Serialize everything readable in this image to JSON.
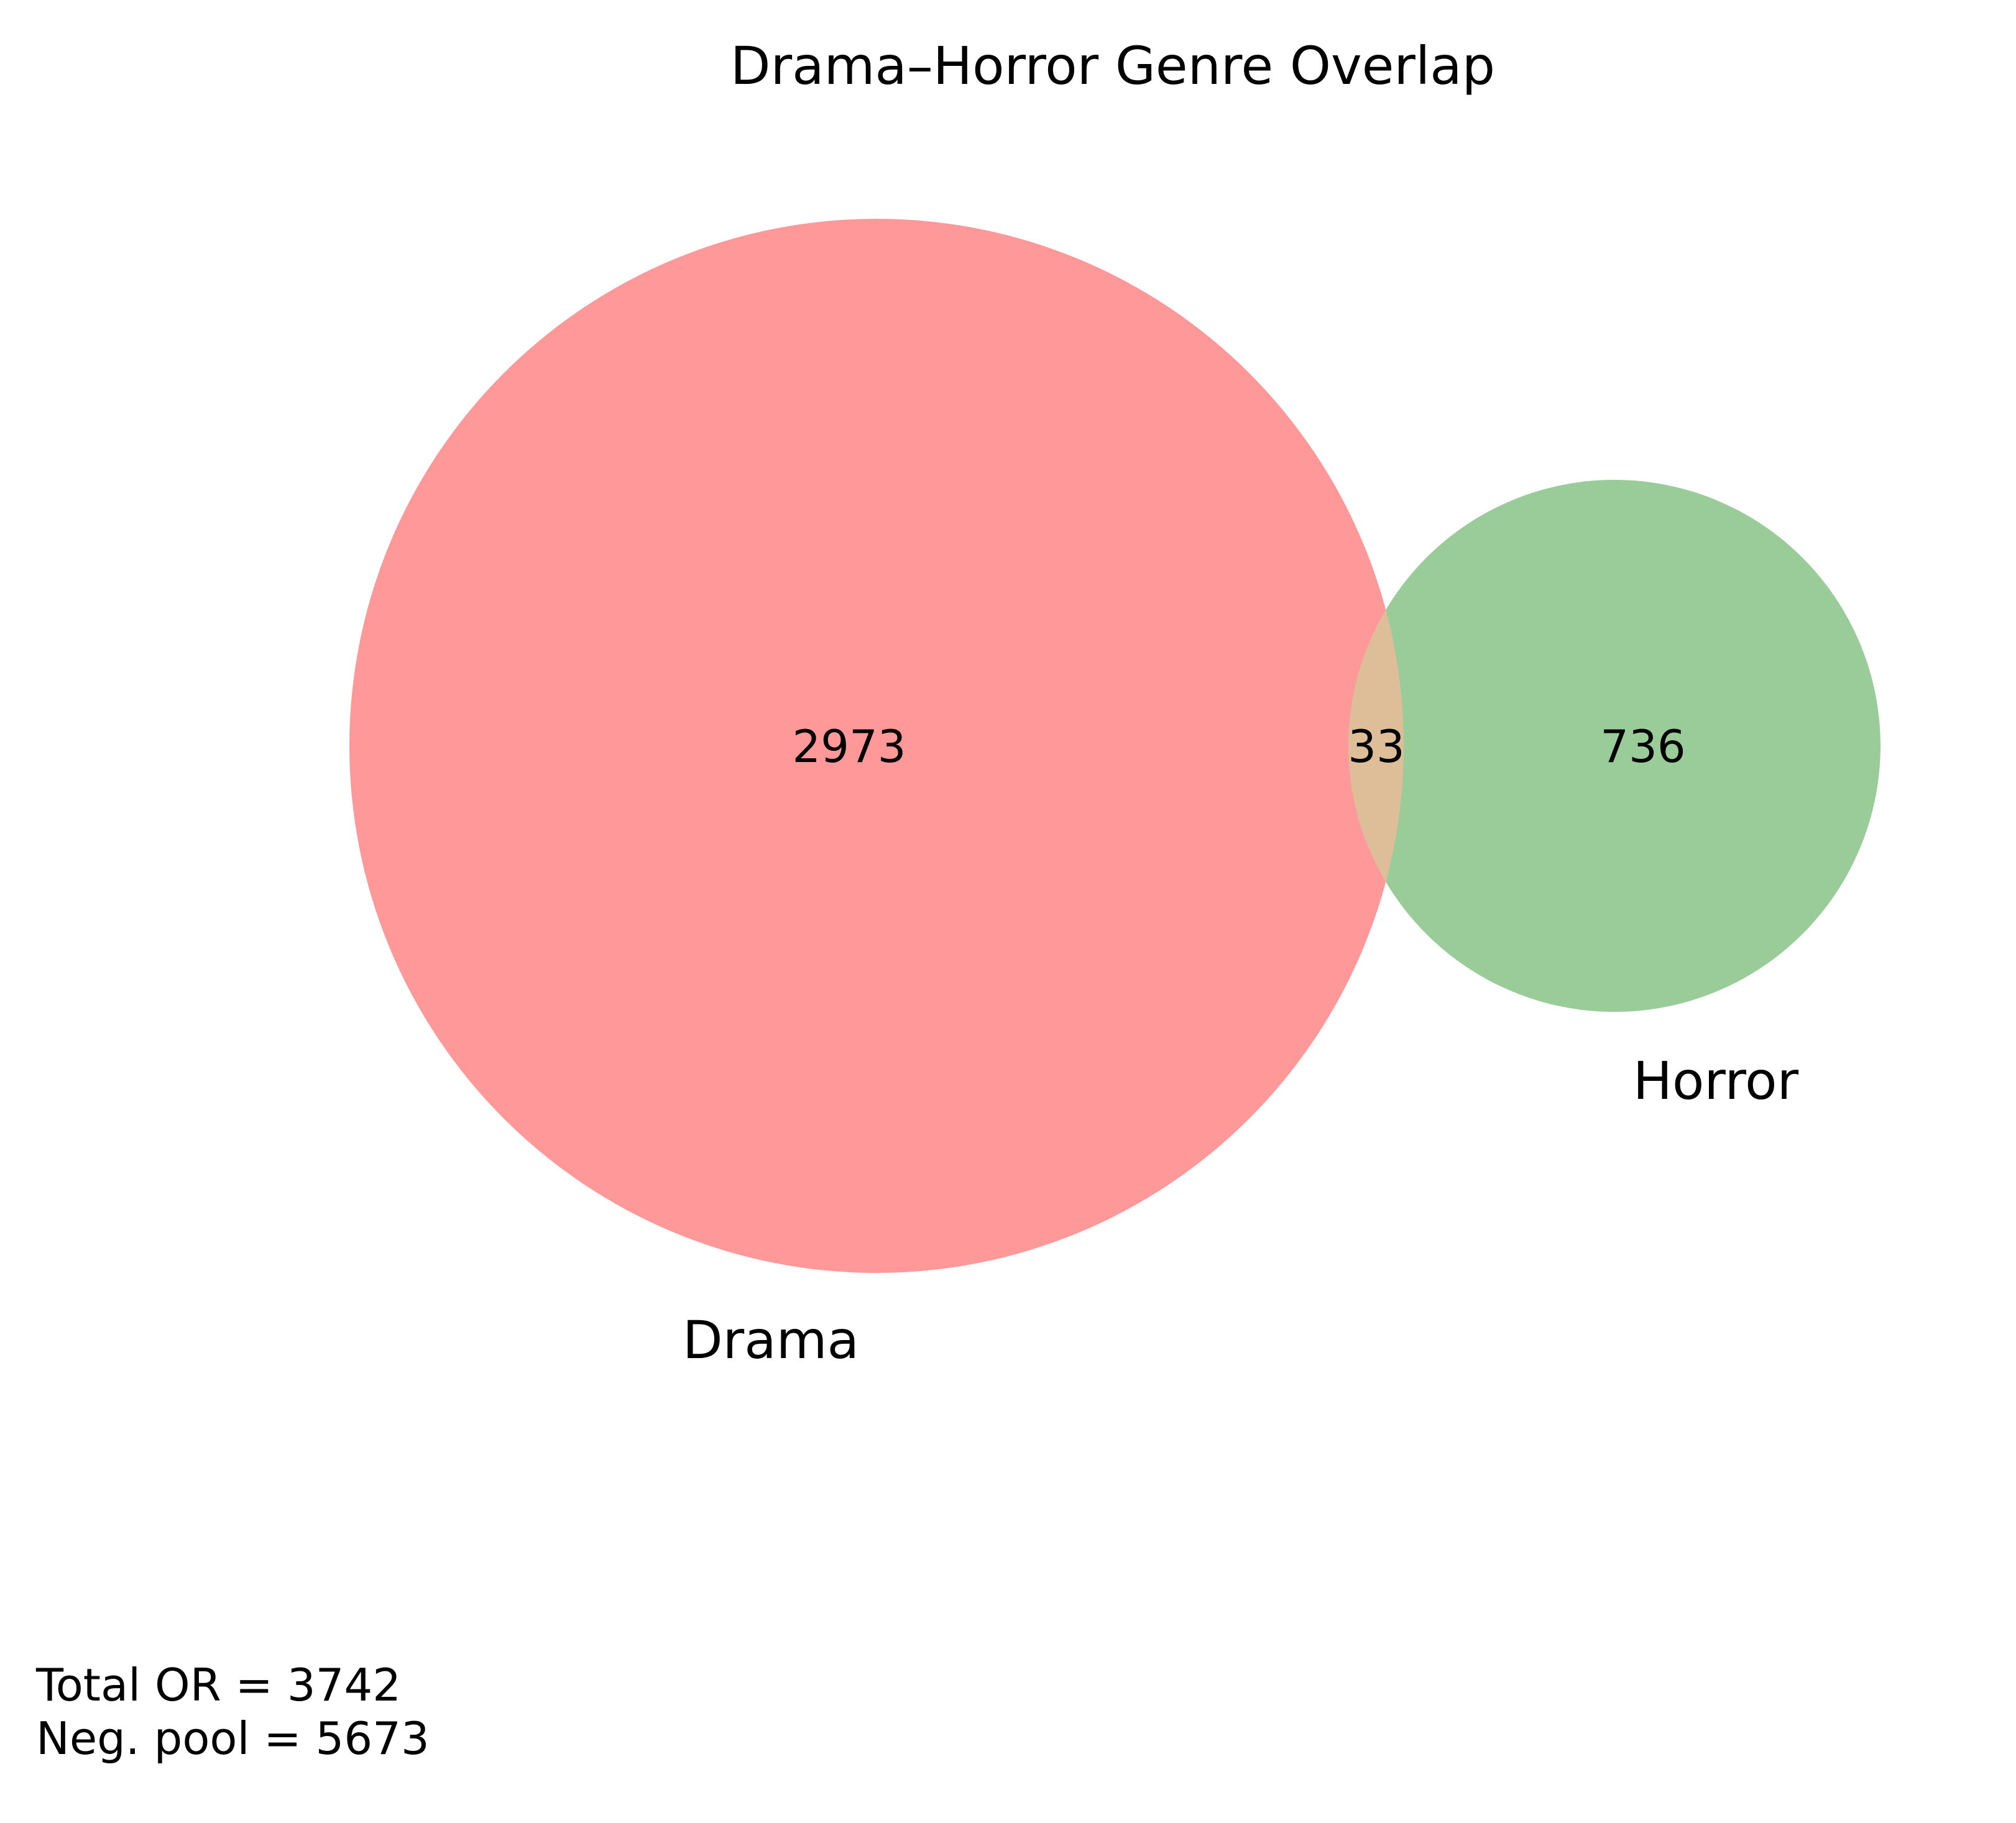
{
  "chart_data": {
    "type": "venn",
    "title": "Drama–Horror Genre Overlap",
    "sets": [
      {
        "name": "Drama",
        "only": 2973,
        "color": "#ff9999"
      },
      {
        "name": "Horror",
        "only": 736,
        "color": "#99cc99"
      }
    ],
    "intersection": {
      "value": 33,
      "color": "#ddbe99"
    },
    "annotations": [
      {
        "label": "Total OR",
        "value": 3742
      },
      {
        "label": "Neg. pool",
        "value": 5673
      }
    ]
  },
  "labels": {
    "drama_only": "2973",
    "horror_only": "736",
    "overlap": "33",
    "total_line": "Total OR = 3742",
    "neg_line": "Neg. pool = 5673"
  }
}
